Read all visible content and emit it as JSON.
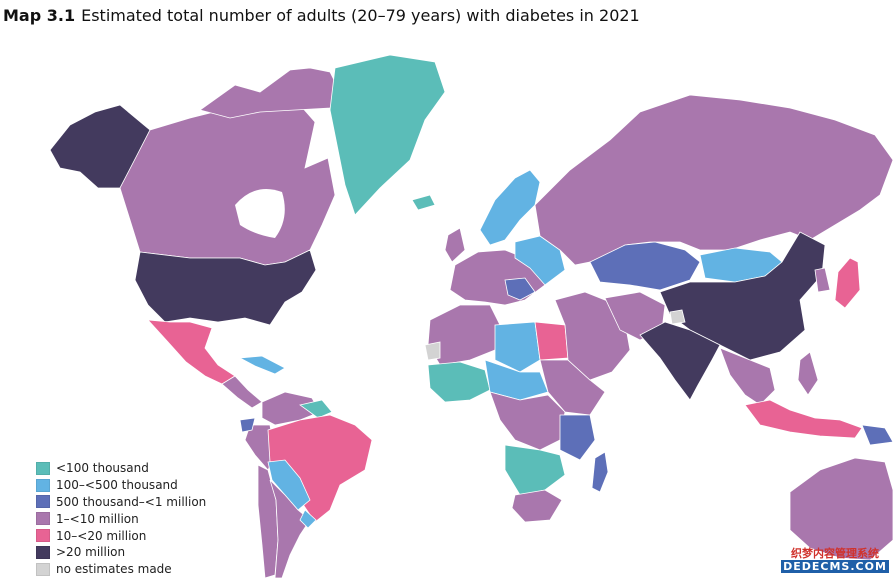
{
  "title": {
    "label": "Map 3.1",
    "text": "Estimated total number of adults (20–79 years) with diabetes in 2021"
  },
  "legend": [
    {
      "label": "<100 thousand",
      "color": "#5bbdb8"
    },
    {
      "label": "100–<500 thousand",
      "color": "#62b3e3"
    },
    {
      "label": "500 thousand–<1 million",
      "color": "#5d6fb8"
    },
    {
      "label": "1–<10 million",
      "color": "#a977ad"
    },
    {
      "label": "10–<20 million",
      "color": "#e86394"
    },
    {
      "label": ">20 million",
      "color": "#433a5e"
    },
    {
      "label": "no estimates made",
      "color": "#d3d3d3"
    }
  ],
  "regions": [
    {
      "name": "Alaska",
      "category": ">20 million"
    },
    {
      "name": "Canada",
      "category": "1–<10 million"
    },
    {
      "name": "Greenland",
      "category": "<100 thousand"
    },
    {
      "name": "United States",
      "category": ">20 million"
    },
    {
      "name": "Mexico",
      "category": "10–<20 million"
    },
    {
      "name": "Brazil",
      "category": "10–<20 million"
    },
    {
      "name": "Argentina",
      "category": "1–<10 million"
    },
    {
      "name": "Egypt",
      "category": "10–<20 million"
    },
    {
      "name": "Russia",
      "category": "1–<10 million"
    },
    {
      "name": "Kazakhstan",
      "category": "500 thousand–<1 million"
    },
    {
      "name": "Mongolia",
      "category": "100–<500 thousand"
    },
    {
      "name": "China",
      "category": ">20 million"
    },
    {
      "name": "India",
      "category": ">20 million"
    },
    {
      "name": "Japan",
      "category": "10–<20 million"
    },
    {
      "name": "Indonesia",
      "category": "10–<20 million"
    },
    {
      "name": "Australia",
      "category": "1–<10 million"
    },
    {
      "name": "Madagascar",
      "category": "500 thousand–<1 million"
    },
    {
      "name": "Western Sahara",
      "category": "no estimates made"
    }
  ],
  "watermark": {
    "line1": "织梦内容管理系统",
    "line2": "DEDECMS.COM"
  }
}
